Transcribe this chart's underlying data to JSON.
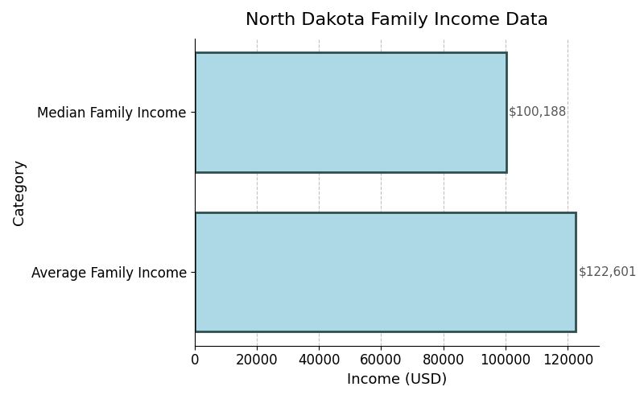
{
  "title": "North Dakota Family Income Data",
  "categories": [
    "Average Family Income",
    "Median Family Income"
  ],
  "values": [
    122601,
    100188
  ],
  "labels": [
    "$122,601",
    "$100,188"
  ],
  "bar_color": "#add8e6",
  "bar_edgecolor": "#2f4f4f",
  "bar_linewidth": 2.0,
  "xlabel": "Income (USD)",
  "ylabel": "Category",
  "xlim": [
    0,
    130000
  ],
  "title_fontsize": 16,
  "axis_label_fontsize": 13,
  "tick_fontsize": 12,
  "label_fontsize": 11,
  "grid_color": "#c0c0c0",
  "grid_linestyle": "--",
  "background_color": "#ffffff",
  "bar_height": 0.75
}
